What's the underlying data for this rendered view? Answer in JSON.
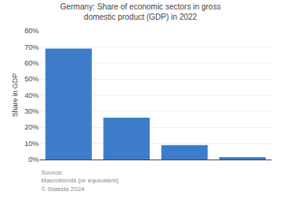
{
  "chart_data": {
    "type": "bar",
    "title": "Germany: Share of economic sectors in gross domestic product (GDP) in 2022",
    "ylabel": "Share in GDP",
    "categories": [
      null,
      null,
      null,
      null
    ],
    "values": [
      69.0,
      26.0,
      9.0,
      1.5
    ],
    "color": "#3d7cc9",
    "ylim": [
      0,
      80
    ],
    "yticks": [
      {
        "value": 0,
        "label": "0%"
      },
      {
        "value": 10,
        "label": "10%"
      },
      {
        "value": 20,
        "label": "20%"
      },
      {
        "value": 30,
        "label": "30%"
      },
      {
        "value": 40,
        "label": "40%"
      },
      {
        "value": 50,
        "label": "50%"
      },
      {
        "value": 60,
        "label": "60%"
      },
      {
        "value": 70,
        "label": "70%"
      },
      {
        "value": 80,
        "label": "80%"
      }
    ],
    "grid": true,
    "tick_labels": "y",
    "annotations": [
      "Source:",
      "Macrotrends (or equivalent)",
      "© Statista 2024"
    ]
  }
}
